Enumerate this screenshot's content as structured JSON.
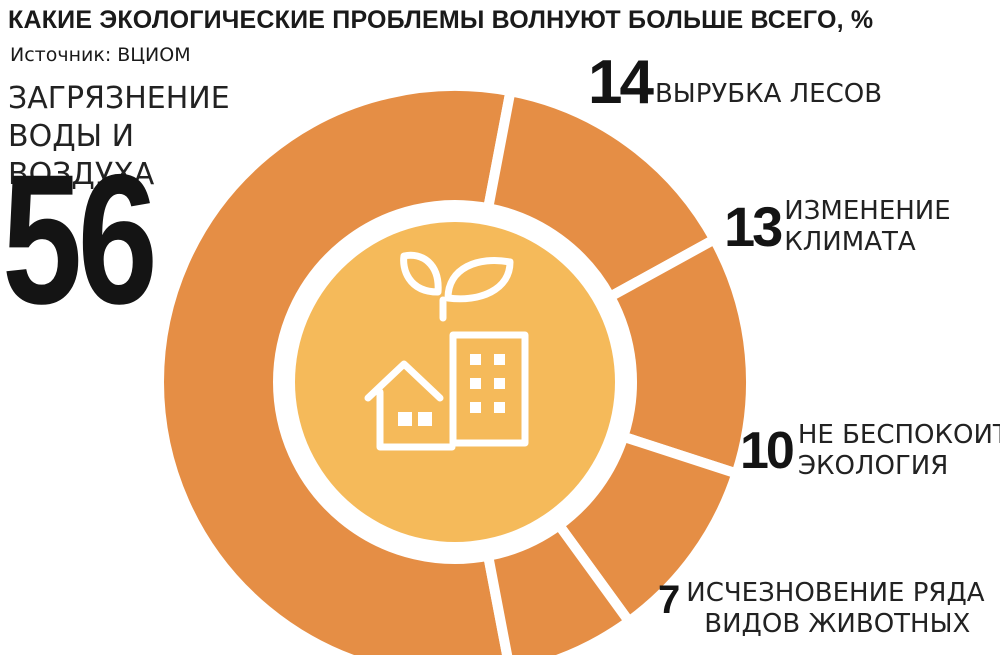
{
  "title": "КАКИЕ ЭКОЛОГИЧЕСКИЕ ПРОБЛЕМЫ ВОЛНУЮТ БОЛЬШЕ ВСЕГО, %",
  "source": "Источник: ВЦИОМ",
  "colors": {
    "ring": "#E58E45",
    "center": "#F5BA5A",
    "icon": "#FFFFFF",
    "gap": "#FFFFFF"
  },
  "center_icon": "leaves-house-building-icon",
  "chart_data": {
    "type": "pie",
    "style": "donut",
    "title": "КАКИЕ ЭКОЛОГИЧЕСКИЕ ПРОБЛЕМЫ ВОЛНУЮТ БОЛЬШЕ ВСЕГО, %",
    "unit": "%",
    "slices": [
      {
        "label": "ЗАГРЯЗНЕНИЕ ВОДЫ И ВОЗДУХА",
        "value": 56
      },
      {
        "label": "ВЫРУБКА ЛЕСОВ",
        "value": 14
      },
      {
        "label": "ИЗМЕНЕНИЕ КЛИМАТА",
        "value": 13
      },
      {
        "label": "НЕ БЕСПОКОИТ ЭКОЛОГИЯ",
        "value": 10
      },
      {
        "label": "ИСЧЕЗНОВЕНИЕ РЯДА ВИДОВ ЖИВОТНЫХ",
        "value": 7
      }
    ]
  },
  "labels": {
    "s0": {
      "value": "56",
      "line1": "ЗАГРЯЗНЕНИЕ",
      "line2": "ВОДЫ И ВОЗДУХА"
    },
    "s1": {
      "value": "14",
      "line1": "ВЫРУБКА ЛЕСОВ"
    },
    "s2": {
      "value": "13",
      "line1": "ИЗМЕНЕНИЕ",
      "line2": "КЛИМАТА"
    },
    "s3": {
      "value": "10",
      "line1": "НЕ БЕСПОКОИТ",
      "line2": "ЭКОЛОГИЯ"
    },
    "s4": {
      "value": "7",
      "line1": "ИСЧЕЗНОВЕНИЕ РЯДА",
      "line2": "ВИДОВ ЖИВОТНЫХ"
    }
  }
}
